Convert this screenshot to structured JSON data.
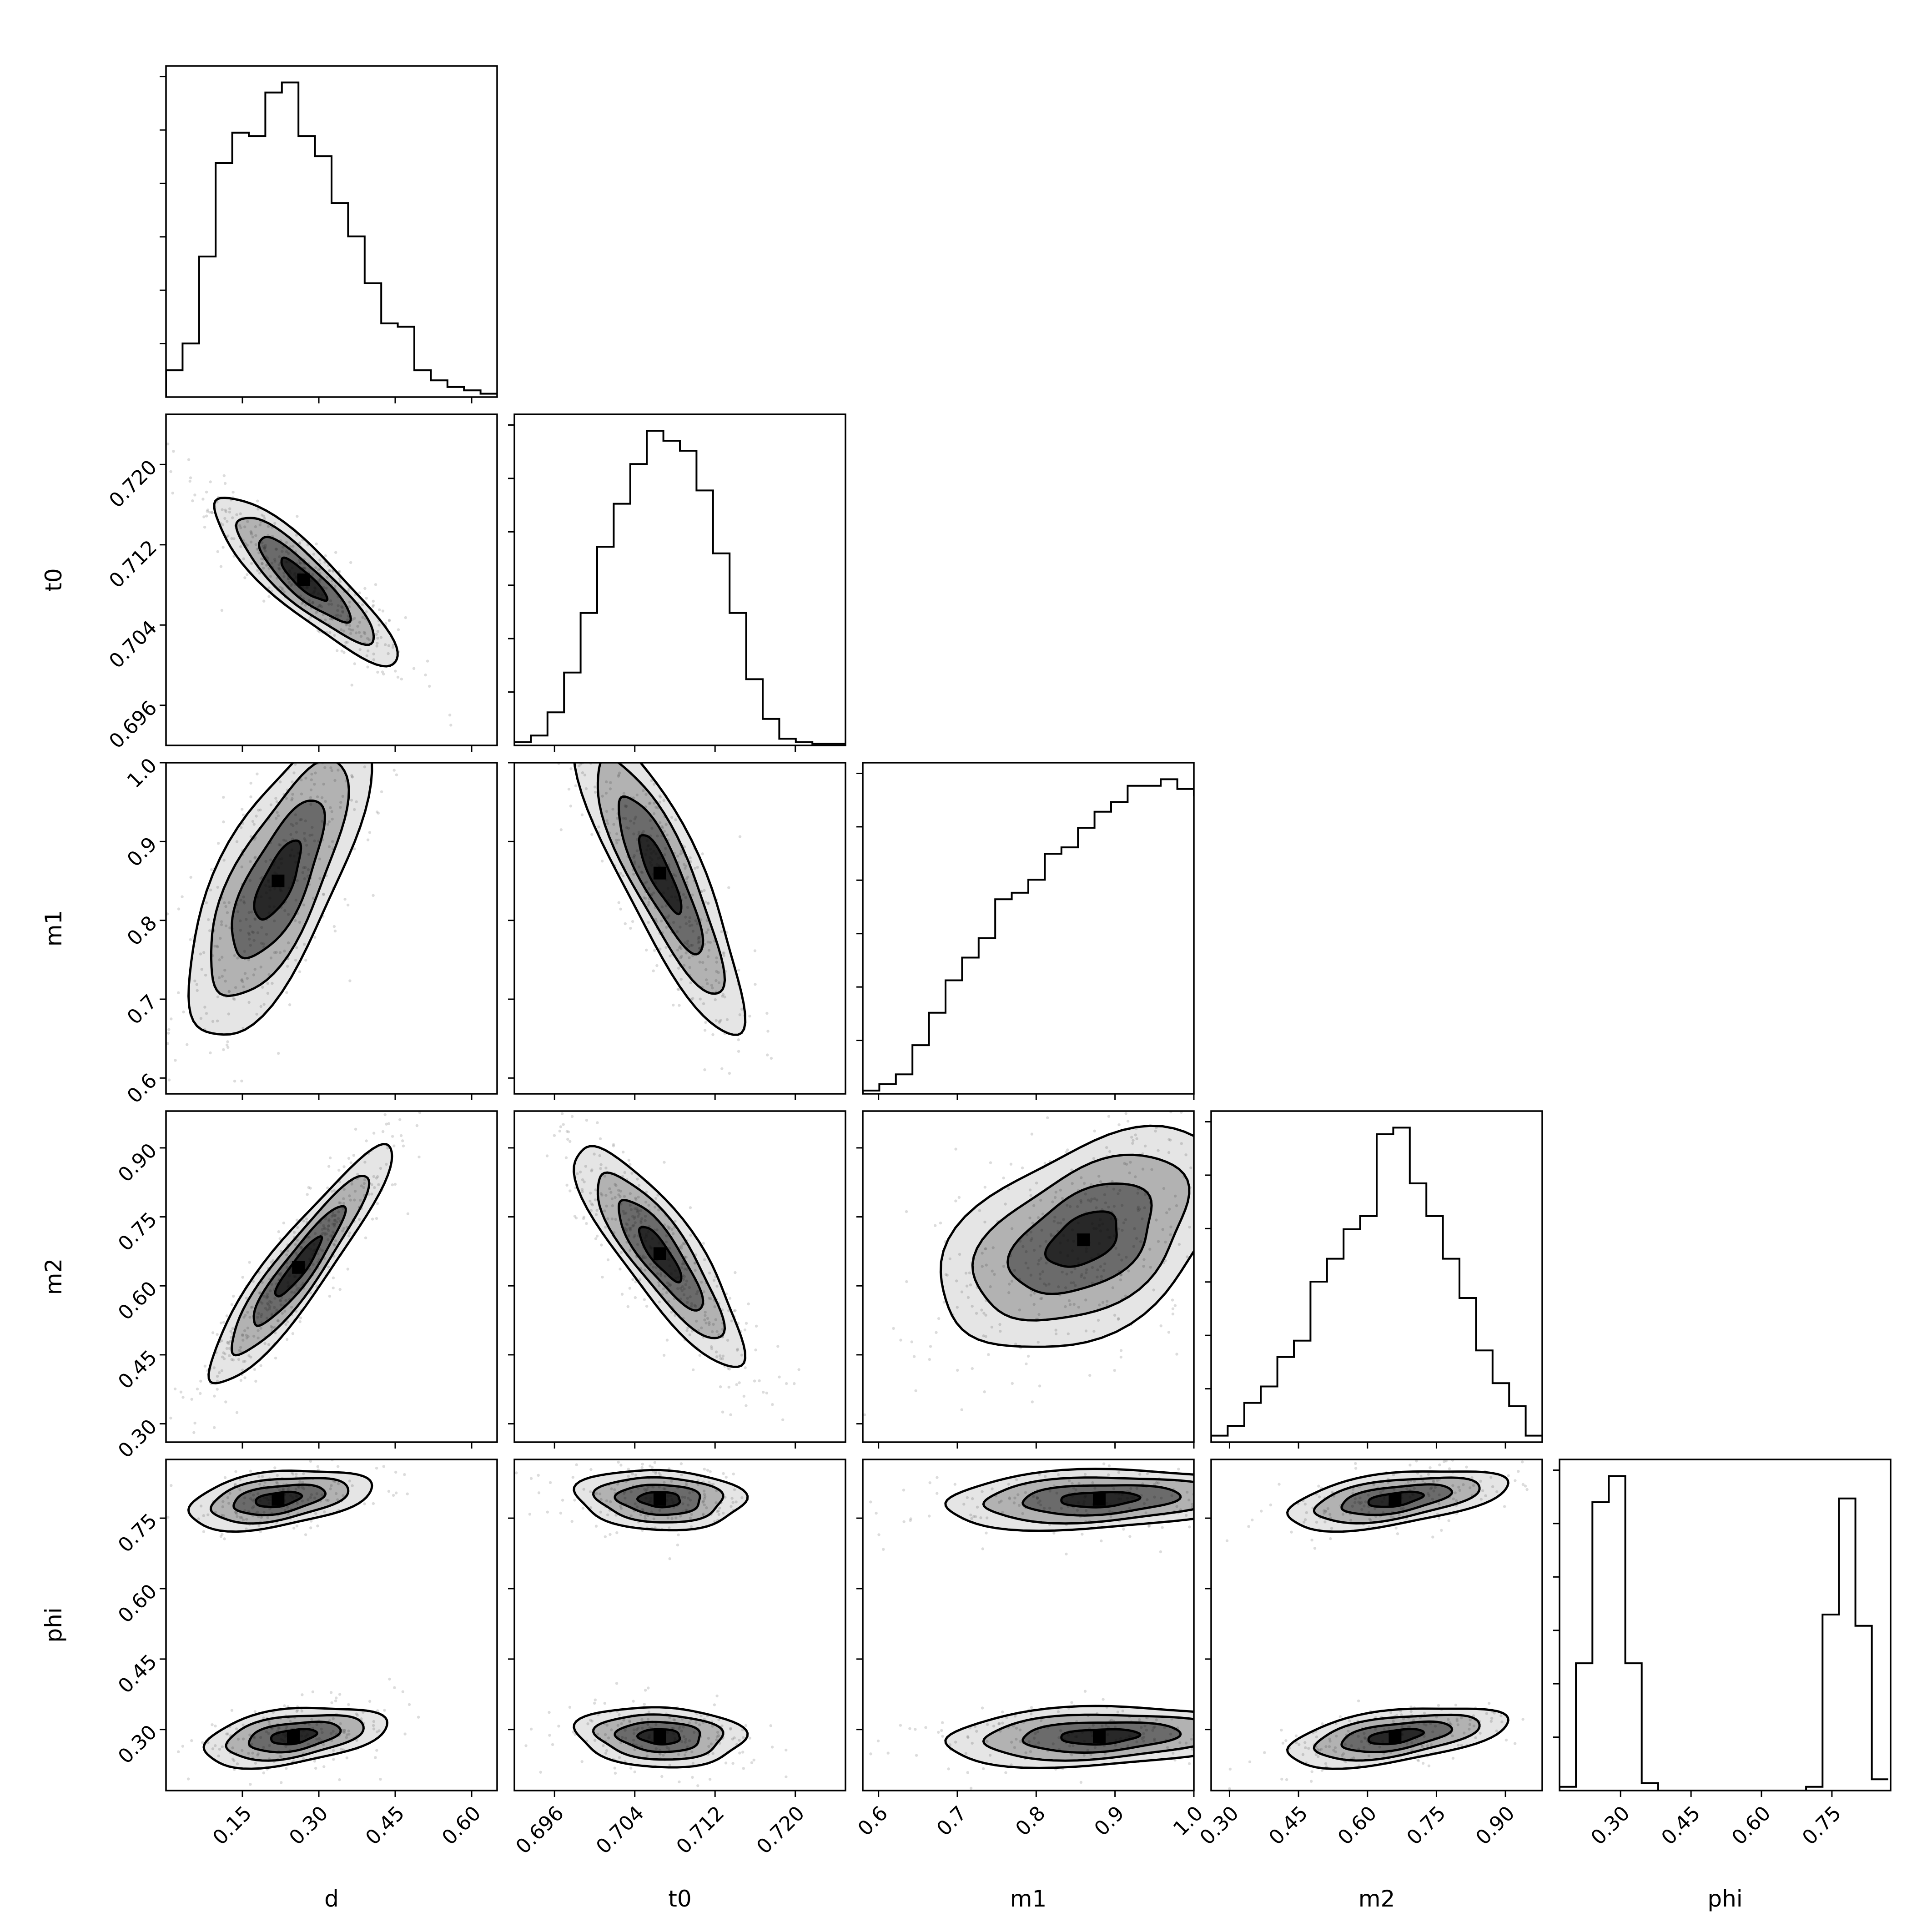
{
  "chart_data": {
    "type": "corner",
    "parameters": [
      "d",
      "t0",
      "m1",
      "m2",
      "phi"
    ],
    "axis_labels": [
      "d",
      "t0",
      "m1",
      "m2",
      "phi"
    ],
    "ranges": {
      "d": [
        0.0,
        0.65
      ],
      "t0": [
        0.692,
        0.725
      ],
      "m1": [
        0.58,
        1.0
      ],
      "m2": [
        0.26,
        0.98
      ],
      "phi": [
        0.17,
        0.875
      ]
    },
    "ticks": {
      "d": [
        0.15,
        0.3,
        0.45,
        0.6
      ],
      "t0": [
        0.696,
        0.704,
        0.712,
        0.72
      ],
      "m1": [
        0.6,
        0.7,
        0.8,
        0.9,
        1.0
      ],
      "m2": [
        0.3,
        0.45,
        0.6,
        0.75,
        0.9
      ],
      "phi": [
        0.3,
        0.45,
        0.6,
        0.75
      ]
    },
    "tick_labels": {
      "d": [
        "0.15",
        "0.30",
        "0.45",
        "0.60"
      ],
      "t0": [
        "0.696",
        "0.704",
        "0.712",
        "0.720"
      ],
      "m1": [
        "0.6",
        "0.7",
        "0.8",
        "0.9",
        "1.0"
      ],
      "m2": [
        "0.30",
        "0.45",
        "0.60",
        "0.75",
        "0.90"
      ],
      "phi": [
        "0.30",
        "0.45",
        "0.60",
        "0.75"
      ]
    },
    "histograms": {
      "d": {
        "bin_start": 0.0,
        "bin_width": 0.0325,
        "counts": [
          0.08,
          0.16,
          0.42,
          0.7,
          0.79,
          0.78,
          0.91,
          0.94,
          0.78,
          0.72,
          0.58,
          0.48,
          0.34,
          0.22,
          0.21,
          0.08,
          0.05,
          0.03,
          0.02,
          0.01
        ]
      },
      "t0": {
        "bin_start": 0.692,
        "bin_width": 0.00165,
        "counts": [
          0.01,
          0.03,
          0.1,
          0.22,
          0.4,
          0.6,
          0.73,
          0.85,
          0.95,
          0.92,
          0.89,
          0.77,
          0.58,
          0.4,
          0.2,
          0.08,
          0.02,
          0.01,
          0.005,
          0.005
        ]
      },
      "m1": {
        "bin_start": 0.58,
        "bin_width": 0.021,
        "counts": [
          0.01,
          0.03,
          0.06,
          0.15,
          0.25,
          0.35,
          0.42,
          0.48,
          0.6,
          0.62,
          0.66,
          0.74,
          0.76,
          0.82,
          0.87,
          0.9,
          0.95,
          0.95,
          0.97,
          0.94,
          0.92,
          0.87
        ]
      },
      "m2": {
        "bin_start": 0.26,
        "bin_width": 0.036,
        "counts": [
          0.02,
          0.05,
          0.12,
          0.17,
          0.26,
          0.31,
          0.49,
          0.56,
          0.65,
          0.69,
          0.94,
          0.96,
          0.79,
          0.69,
          0.56,
          0.44,
          0.28,
          0.18,
          0.11,
          0.02
        ]
      },
      "phi": {
        "bin_start": 0.17,
        "bin_width": 0.035,
        "counts": [
          0.01,
          0.34,
          0.77,
          0.84,
          0.34,
          0.02,
          0.0,
          0.0,
          0.0,
          0.0,
          0.0,
          0.0,
          0.0,
          0.0,
          0.0,
          0.01,
          0.47,
          0.78,
          0.44,
          0.03
        ]
      }
    },
    "joint_distributions": [
      {
        "x": "d",
        "y": "t0",
        "modes": [
          {
            "center": [
              0.27,
              0.7085
            ],
            "sx": 0.09,
            "sy": 0.0042,
            "rho": -0.88,
            "weight": 1.0
          }
        ]
      },
      {
        "x": "d",
        "y": "m1",
        "modes": [
          {
            "center": [
              0.22,
              0.85
            ],
            "sx": 0.09,
            "sy": 0.1,
            "rho": 0.72,
            "weight": 1.0
          }
        ]
      },
      {
        "x": "t0",
        "y": "m1",
        "modes": [
          {
            "center": [
              0.7065,
              0.86
            ],
            "sx": 0.0042,
            "sy": 0.1,
            "rho": -0.85,
            "weight": 1.0
          }
        ]
      },
      {
        "x": "d",
        "y": "m2",
        "modes": [
          {
            "center": [
              0.26,
              0.64
            ],
            "sx": 0.09,
            "sy": 0.13,
            "rho": 0.92,
            "weight": 1.0
          }
        ]
      },
      {
        "x": "t0",
        "y": "m2",
        "modes": [
          {
            "center": [
              0.7065,
              0.67
            ],
            "sx": 0.0042,
            "sy": 0.12,
            "rho": -0.85,
            "weight": 1.0
          }
        ]
      },
      {
        "x": "m1",
        "y": "m2",
        "modes": [
          {
            "center": [
              0.86,
              0.7
            ],
            "sx": 0.09,
            "sy": 0.12,
            "rho": 0.45,
            "weight": 1.0
          }
        ]
      },
      {
        "x": "d",
        "y": "phi",
        "modes": [
          {
            "center": [
              0.22,
              0.79
            ],
            "sx": 0.09,
            "sy": 0.032,
            "rho": 0.4,
            "weight": 0.5
          },
          {
            "center": [
              0.25,
              0.285
            ],
            "sx": 0.09,
            "sy": 0.032,
            "rho": 0.4,
            "weight": 0.5
          }
        ]
      },
      {
        "x": "t0",
        "y": "phi",
        "modes": [
          {
            "center": [
              0.7065,
              0.79
            ],
            "sx": 0.0042,
            "sy": 0.032,
            "rho": -0.1,
            "weight": 0.5
          },
          {
            "center": [
              0.7065,
              0.285
            ],
            "sx": 0.0042,
            "sy": 0.032,
            "rho": -0.1,
            "weight": 0.5
          }
        ]
      },
      {
        "x": "m1",
        "y": "phi",
        "modes": [
          {
            "center": [
              0.88,
              0.79
            ],
            "sx": 0.1,
            "sy": 0.032,
            "rho": 0.2,
            "weight": 0.5
          },
          {
            "center": [
              0.88,
              0.285
            ],
            "sx": 0.1,
            "sy": 0.032,
            "rho": 0.2,
            "weight": 0.5
          }
        ]
      },
      {
        "x": "m2",
        "y": "phi",
        "modes": [
          {
            "center": [
              0.66,
              0.79
            ],
            "sx": 0.12,
            "sy": 0.032,
            "rho": 0.5,
            "weight": 0.5
          },
          {
            "center": [
              0.66,
              0.285
            ],
            "sx": 0.12,
            "sy": 0.032,
            "rho": 0.5,
            "weight": 0.5
          }
        ]
      }
    ],
    "contour_levels_sigma": [
      0.5,
      1.0,
      1.5,
      2.0
    ],
    "colors": {
      "line": "#000000",
      "density": "#000000",
      "points": "#9a9a9a"
    },
    "grid": false
  }
}
